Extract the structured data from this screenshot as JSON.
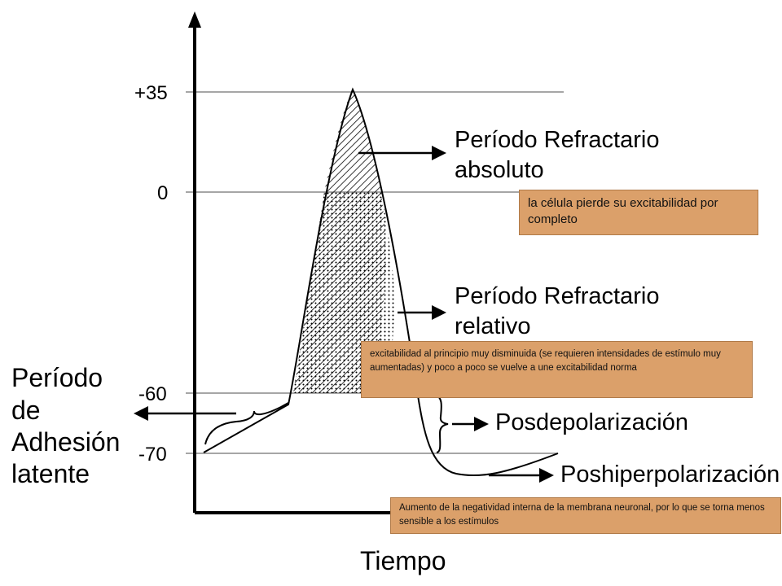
{
  "axis": {
    "x_label": "Tiempo",
    "ticks": [
      "+35",
      "0",
      "-60",
      "-70"
    ]
  },
  "labels": {
    "absolute": [
      "Período Refractario",
      "absoluto"
    ],
    "relative": [
      "Período Refractario",
      "relativo"
    ],
    "latent": [
      "Período",
      "de",
      "Adhesión",
      "latente"
    ],
    "posdepolarizacion": "Posdepolarización",
    "poshiperpolarizacion": "Poshiperpolarización"
  },
  "notes": {
    "absolute": "la célula pierde su excitabilidad por completo",
    "relative": "excitabilidad al principio muy disminuida (se requieren intensidades de estímulo muy aumentadas) y poco a poco se vuelve a une excitabilidad norma",
    "hyper": "Aumento de la negatividad interna de la membrana neuronal, por lo que se torna menos sensible a los estímulos"
  }
}
